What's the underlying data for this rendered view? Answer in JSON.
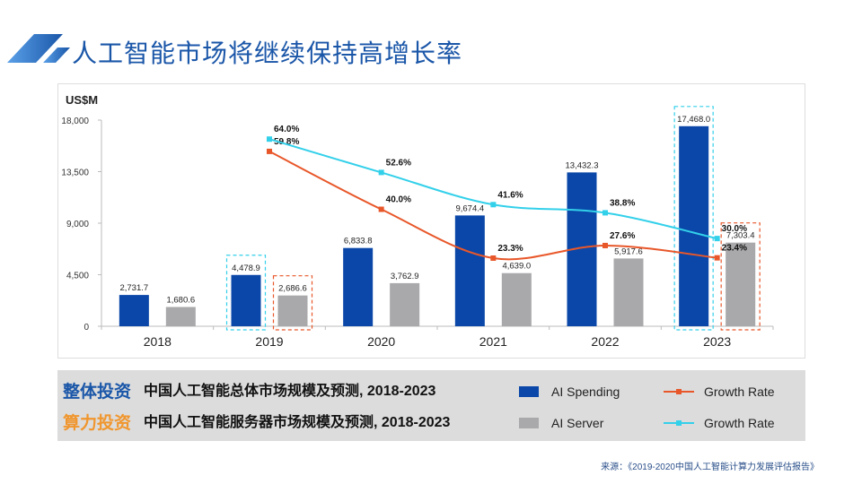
{
  "header": {
    "title": "人工智能市场将继续保持高增长率"
  },
  "chart_data": {
    "type": "bar",
    "ylabel": "US$M",
    "ylim": [
      0,
      18000
    ],
    "yticks": [
      0,
      4500,
      9000,
      13500,
      18000
    ],
    "ytick_labels": [
      "0",
      "4,500",
      "9,000",
      "13,500",
      "18,000"
    ],
    "categories": [
      "2018",
      "2019",
      "2020",
      "2021",
      "2022",
      "2023"
    ],
    "series": [
      {
        "name": "AI Spending",
        "kind": "bar",
        "color": "#0a47a8",
        "values": [
          2731.7,
          4478.9,
          6833.8,
          9674.4,
          13432.3,
          17468.0
        ],
        "labels": [
          "2,731.7",
          "4,478.9",
          "6,833.8",
          "9,674.4",
          "13,432.3",
          "17,468.0"
        ]
      },
      {
        "name": "AI Server",
        "kind": "bar",
        "color": "#a9a8aa",
        "values": [
          1680.6,
          2686.6,
          3762.9,
          4639.0,
          5917.6,
          7303.4
        ],
        "labels": [
          "1,680.6",
          "2,686.6",
          "3,762.9",
          "4,639.0",
          "5,917.6",
          "7,303.4"
        ]
      },
      {
        "name": "Growth Rate",
        "kind": "line",
        "axis": "secondary",
        "color": "#e8572a",
        "values": [
          null,
          59.8,
          40.0,
          23.3,
          27.6,
          23.4
        ],
        "labels": [
          "",
          "59.8%",
          "40.0%",
          "23.3%",
          "27.6%",
          "23.4%"
        ]
      },
      {
        "name": "Growth Rate",
        "kind": "line",
        "axis": "secondary",
        "color": "#33d0ea",
        "values": [
          null,
          64.0,
          52.6,
          41.6,
          38.8,
          30.0
        ],
        "labels": [
          "",
          "64.0%",
          "52.6%",
          "41.6%",
          "38.8%",
          "30.0%"
        ]
      }
    ],
    "secondary_ylim": [
      0,
      70.5
    ],
    "highlighted_categories": [
      "2019",
      "2023"
    ],
    "grid": false
  },
  "legend": {
    "row1": {
      "tag": "整体投资",
      "tag_color": "#1a56a8",
      "desc": "中国人工智能总体市场规模及预测, 2018-2023",
      "bar": "AI Spending",
      "line": "Growth Rate"
    },
    "row2": {
      "tag": "算力投资",
      "tag_color": "#f0962e",
      "desc": "中国人工智能服务器市场规模及预测, 2018-2023",
      "bar": "AI Server",
      "line": "Growth Rate"
    }
  },
  "source": "来源：《2019-2020中国人工智能计算力发展评估报告》"
}
